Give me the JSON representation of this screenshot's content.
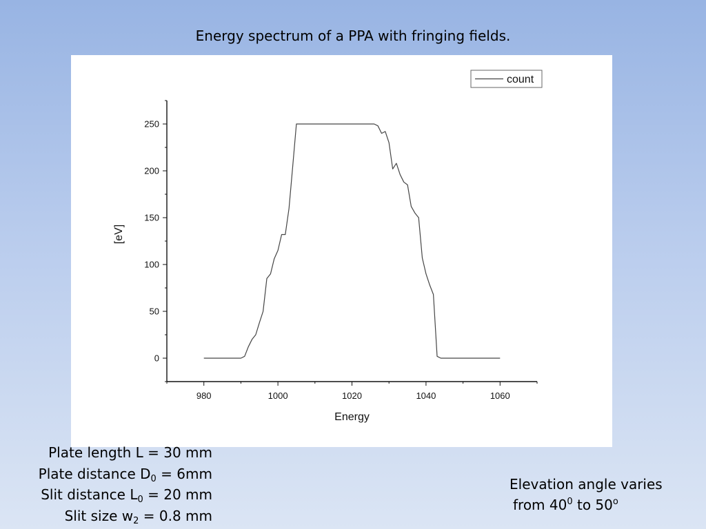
{
  "slide": {
    "title": "Energy spectrum of a PPA with fringing fields."
  },
  "params": {
    "plate_length": {
      "pre": "Plate length L = 30 mm"
    },
    "plate_distance": {
      "pre": "Plate distance D",
      "sub": "0",
      "post": " = 6mm"
    },
    "slit_distance": {
      "pre": "Slit distance L",
      "sub": "0",
      "post": " = 20 mm"
    },
    "slit_size": {
      "pre": "Slit size w",
      "sub": "2",
      "post": " = 0.8 mm"
    }
  },
  "elevation": {
    "line1": "Elevation angle varies",
    "line2_pre": "from 40",
    "line2_sup1": "0",
    "line2_mid": " to 50",
    "line2_sup2": "o"
  },
  "chart_data": {
    "type": "line",
    "xlabel": "Energy",
    "ylabel": "[eV]",
    "xlim": [
      970,
      1070
    ],
    "ylim": [
      -25,
      275
    ],
    "xticks": [
      980,
      1000,
      1020,
      1040,
      1060
    ],
    "yticks": [
      0,
      50,
      100,
      150,
      200,
      250
    ],
    "grid": false,
    "legend_position": "top-right",
    "series": [
      {
        "name": "count",
        "color": "#444444",
        "x": [
          980,
          981,
          990,
          991,
          992,
          993,
          994,
          995,
          996,
          997,
          998,
          999,
          1000,
          1001,
          1002,
          1003,
          1004,
          1005,
          1006,
          1026,
          1027,
          1028,
          1029,
          1030,
          1031,
          1032,
          1033,
          1034,
          1035,
          1036,
          1037,
          1038,
          1039,
          1040,
          1041,
          1042,
          1043,
          1044,
          1060
        ],
        "values": [
          0,
          0,
          0,
          2,
          12,
          20,
          25,
          38,
          50,
          85,
          90,
          106,
          115,
          132,
          132,
          160,
          205,
          250,
          250,
          250,
          248,
          240,
          242,
          230,
          202,
          208,
          196,
          188,
          185,
          162,
          155,
          150,
          107,
          90,
          78,
          68,
          2,
          0,
          0
        ]
      }
    ]
  }
}
